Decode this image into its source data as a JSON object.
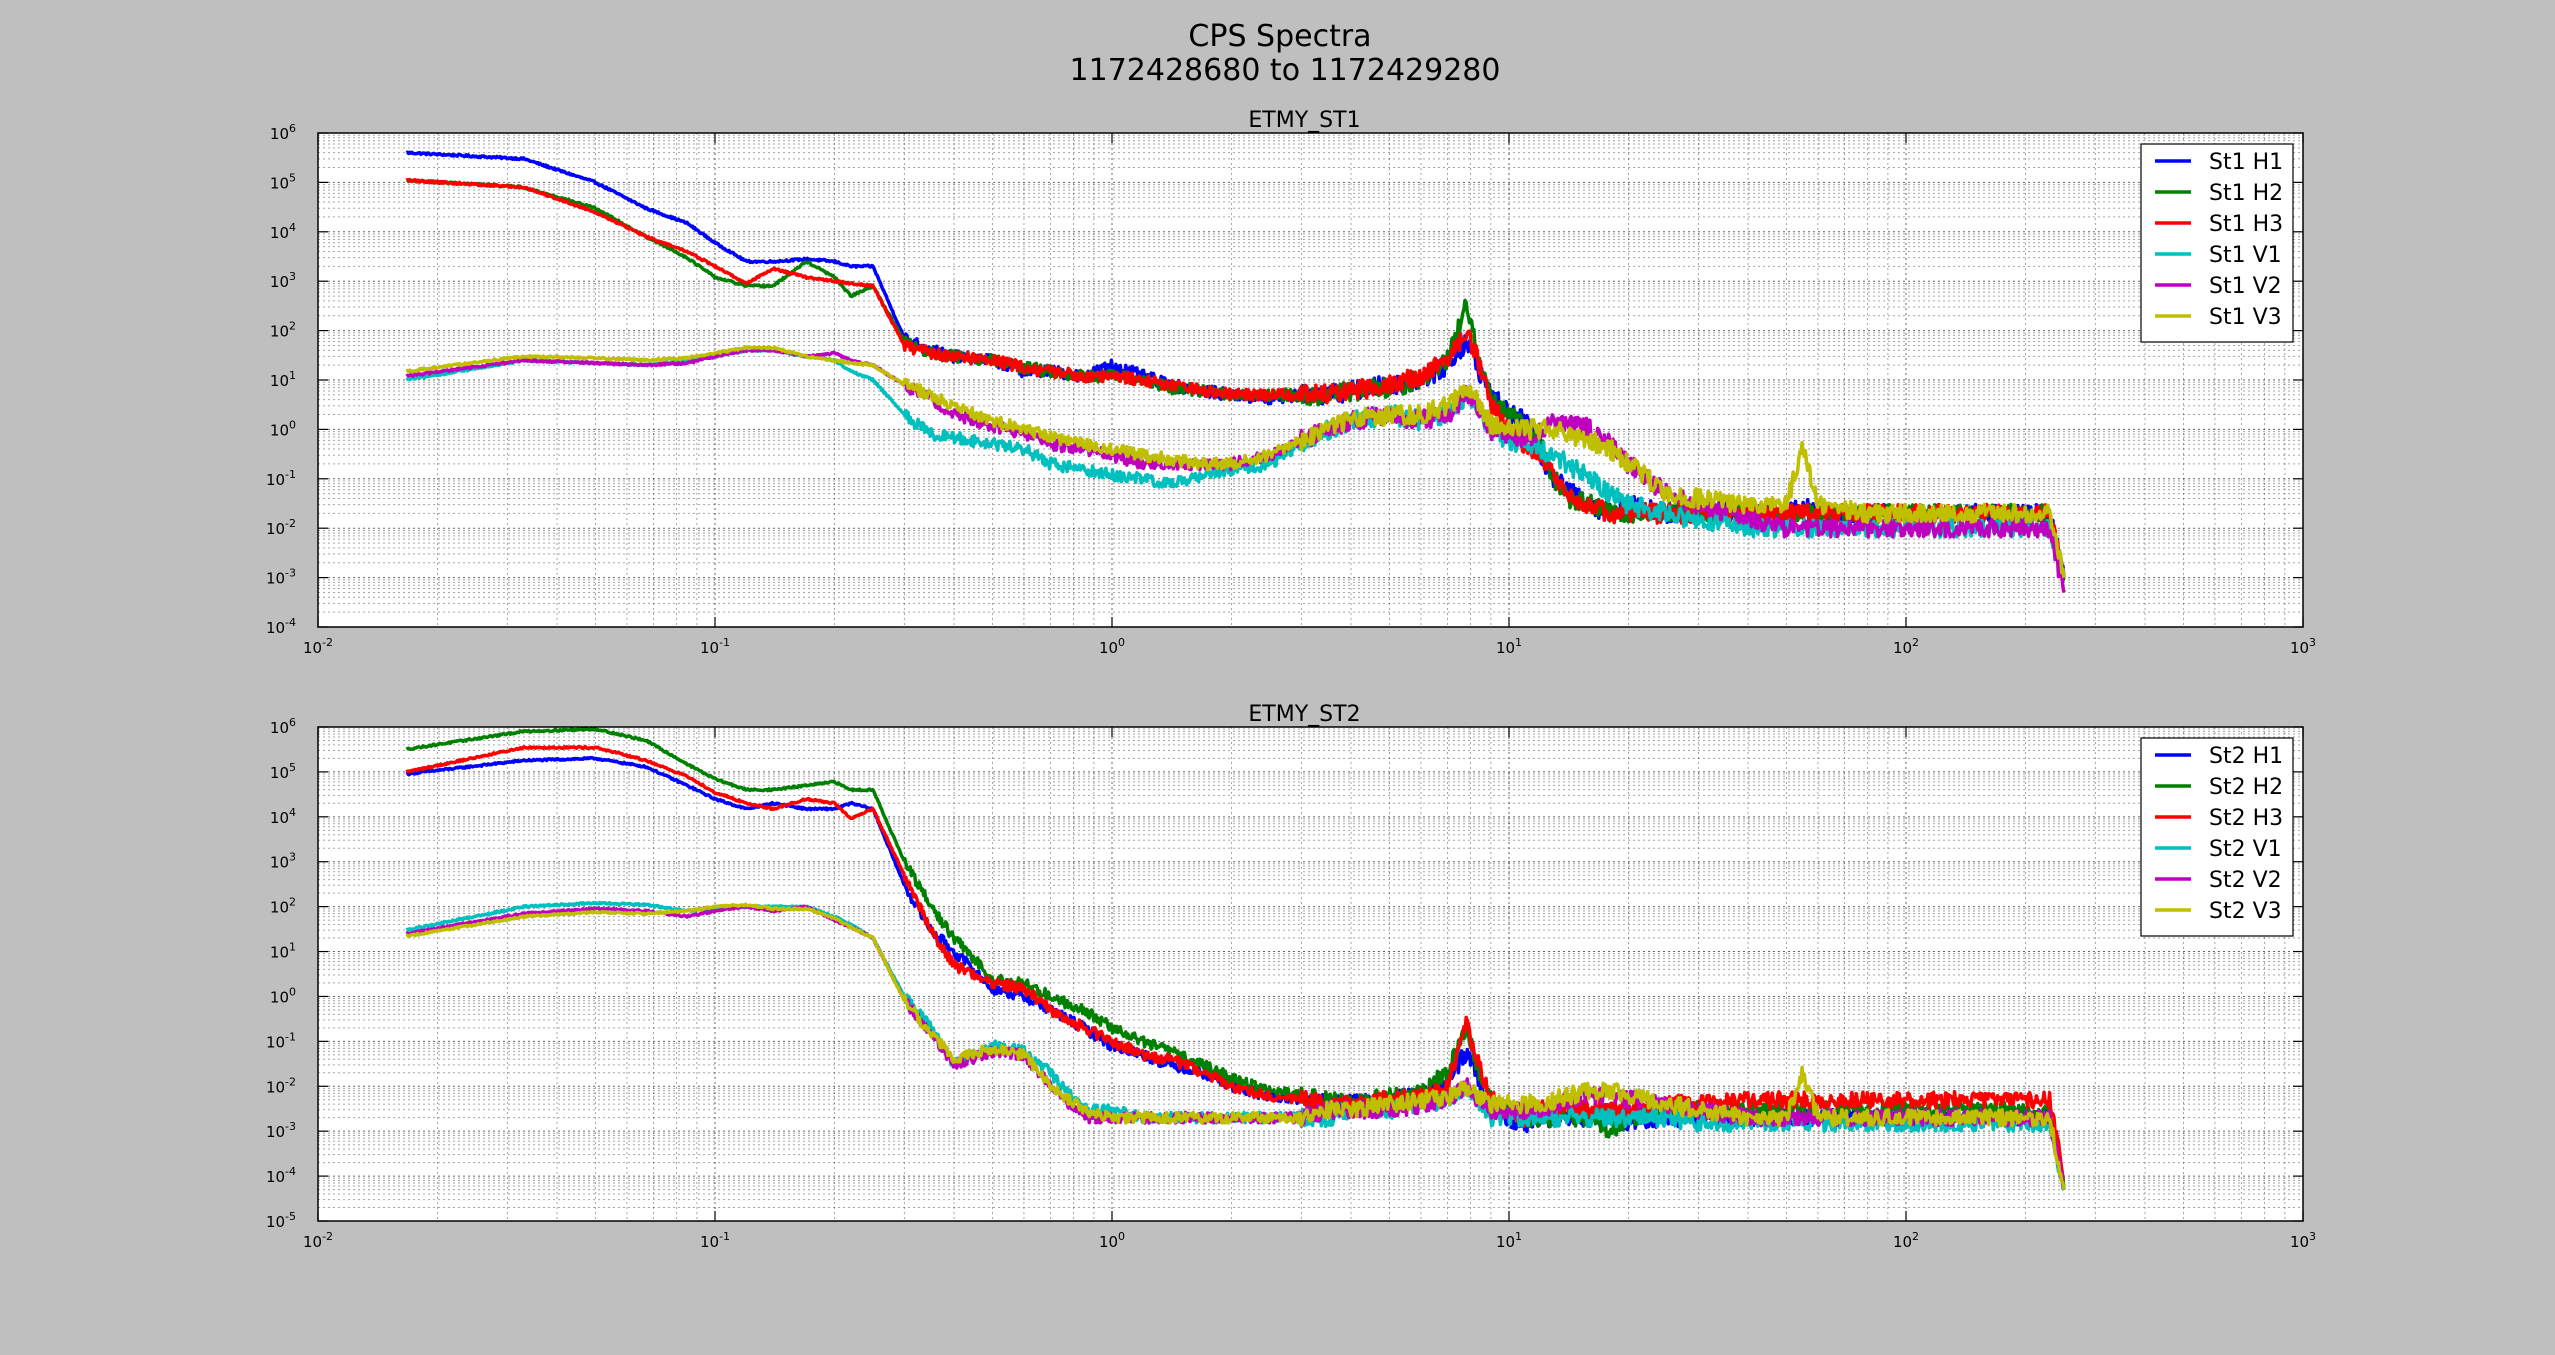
{
  "figure": {
    "title_line1": "CPS Spectra",
    "title_line2": "1172428680 to 1172429280",
    "background": "#bfbfbf"
  },
  "chart_data": [
    {
      "type": "line",
      "title": "ETMY_ST1",
      "xscale": "log",
      "yscale": "log",
      "xlim": [
        0.01,
        1000
      ],
      "ylim": [
        0.0001,
        1000000
      ],
      "grid": true,
      "legend_position": "top-right",
      "x_tick_labels": [
        "10-2",
        "10-1",
        "100",
        "101",
        "102",
        "103"
      ],
      "y_tick_labels": [
        "10-4",
        "10-3",
        "10-2",
        "10-1",
        "100",
        "101",
        "102",
        "103",
        "104",
        "105",
        "106"
      ],
      "x": [
        0.0167,
        0.033,
        0.05,
        0.067,
        0.085,
        0.1,
        0.12,
        0.14,
        0.17,
        0.2,
        0.22,
        0.25,
        0.3,
        0.35,
        0.4,
        0.5,
        0.6,
        0.7,
        0.85,
        1,
        1.2,
        1.4,
        1.7,
        2,
        2.5,
        3,
        3.5,
        4,
        5,
        6,
        7,
        7.8,
        8.3,
        9,
        10,
        11,
        12,
        13,
        14,
        16,
        18,
        20,
        25,
        30,
        40,
        50,
        55,
        60,
        80,
        100,
        130,
        160,
        200,
        230,
        250
      ],
      "series": [
        {
          "name": "St1 H1",
          "color": "#0000ff",
          "values": [
            400000,
            300000,
            100000,
            30000,
            15000,
            6000,
            2500,
            2500,
            2800,
            2500,
            2000,
            2000,
            70,
            40,
            30,
            25,
            15,
            15,
            12,
            20,
            12,
            8,
            6,
            5,
            4,
            5,
            5,
            6,
            8,
            10,
            20,
            60,
            20,
            5,
            2,
            1.5,
            0.3,
            0.1,
            0.06,
            0.03,
            0.02,
            0.03,
            0.02,
            0.03,
            0.02,
            0.02,
            0.03,
            0.02,
            0.02,
            0.02,
            0.02,
            0.02,
            0.02,
            0.02,
            0.001
          ]
        },
        {
          "name": "St1 H2",
          "color": "#008000",
          "values": [
            110000,
            80000,
            30000,
            8000,
            3000,
            1200,
            800,
            800,
            2500,
            1200,
            500,
            800,
            60,
            35,
            30,
            25,
            18,
            15,
            12,
            12,
            10,
            7,
            6,
            5,
            5,
            5,
            5,
            6,
            7,
            10,
            25,
            300,
            40,
            4,
            2,
            1.2,
            0.5,
            0.1,
            0.04,
            0.03,
            0.02,
            0.02,
            0.02,
            0.02,
            0.02,
            0.02,
            0.02,
            0.02,
            0.02,
            0.02,
            0.02,
            0.02,
            0.02,
            0.02,
            0.001
          ]
        },
        {
          "name": "St1 H3",
          "color": "#ff0000",
          "values": [
            110000,
            80000,
            25000,
            8000,
            4000,
            2000,
            900,
            1800,
            1200,
            1000,
            900,
            800,
            50,
            35,
            30,
            25,
            18,
            15,
            12,
            12,
            10,
            8,
            6,
            5,
            5,
            5,
            5,
            6,
            8,
            12,
            25,
            100,
            30,
            3,
            1,
            0.5,
            0.3,
            0.1,
            0.05,
            0.03,
            0.02,
            0.02,
            0.02,
            0.02,
            0.02,
            0.02,
            0.02,
            0.02,
            0.02,
            0.02,
            0.02,
            0.02,
            0.02,
            0.02,
            0.001
          ]
        },
        {
          "name": "St1 V1",
          "color": "#00bfbf",
          "values": [
            10,
            25,
            22,
            20,
            25,
            30,
            40,
            40,
            30,
            25,
            15,
            10,
            2,
            0.8,
            0.7,
            0.5,
            0.4,
            0.2,
            0.15,
            0.12,
            0.1,
            0.08,
            0.12,
            0.15,
            0.2,
            0.5,
            1,
            1.5,
            2,
            1.5,
            2,
            5,
            3,
            1,
            0.6,
            0.5,
            0.4,
            0.3,
            0.2,
            0.1,
            0.05,
            0.03,
            0.02,
            0.015,
            0.01,
            0.01,
            0.01,
            0.01,
            0.01,
            0.01,
            0.01,
            0.01,
            0.01,
            0.01,
            0.001
          ]
        },
        {
          "name": "St1 V2",
          "color": "#bf00bf",
          "values": [
            12,
            25,
            22,
            20,
            22,
            30,
            40,
            40,
            30,
            35,
            25,
            20,
            8,
            4,
            2,
            1.2,
            0.8,
            0.5,
            0.4,
            0.3,
            0.2,
            0.2,
            0.2,
            0.2,
            0.3,
            0.6,
            1,
            1.5,
            2,
            1.5,
            2,
            5,
            3,
            1,
            0.8,
            0.6,
            1,
            1.5,
            1.5,
            1,
            0.5,
            0.2,
            0.05,
            0.03,
            0.015,
            0.01,
            0.01,
            0.01,
            0.01,
            0.01,
            0.01,
            0.01,
            0.01,
            0.01,
            0.0005
          ]
        },
        {
          "name": "St1 V3",
          "color": "#bfbf00",
          "values": [
            15,
            30,
            28,
            25,
            28,
            35,
            45,
            45,
            30,
            25,
            22,
            20,
            8,
            5,
            3,
            1.5,
            1,
            0.7,
            0.5,
            0.4,
            0.3,
            0.25,
            0.2,
            0.2,
            0.3,
            0.6,
            1,
            1.5,
            2,
            2,
            3,
            6,
            4,
            1.2,
            1,
            1,
            1,
            1,
            0.8,
            0.6,
            0.4,
            0.2,
            0.05,
            0.04,
            0.03,
            0.03,
            0.5,
            0.03,
            0.02,
            0.02,
            0.02,
            0.02,
            0.02,
            0.02,
            0.001
          ]
        }
      ]
    },
    {
      "type": "line",
      "title": "ETMY_ST2",
      "xscale": "log",
      "yscale": "log",
      "xlim": [
        0.01,
        1000
      ],
      "ylim": [
        1e-05,
        1000000
      ],
      "grid": true,
      "legend_position": "top-right",
      "x_tick_labels": [
        "10-2",
        "10-1",
        "100",
        "101",
        "102",
        "103"
      ],
      "y_tick_labels": [
        "10-5",
        "10-4",
        "10-3",
        "10-2",
        "10-1",
        "100",
        "101",
        "102",
        "103",
        "104",
        "105",
        "106"
      ],
      "x": [
        0.0167,
        0.033,
        0.05,
        0.067,
        0.085,
        0.1,
        0.12,
        0.14,
        0.17,
        0.2,
        0.22,
        0.25,
        0.3,
        0.35,
        0.4,
        0.5,
        0.6,
        0.7,
        0.85,
        1,
        1.2,
        1.4,
        1.7,
        2,
        2.5,
        3,
        3.5,
        4,
        5,
        6,
        7,
        7.8,
        8.3,
        9,
        10,
        11,
        12,
        13,
        14,
        16,
        18,
        20,
        25,
        30,
        40,
        50,
        55,
        60,
        80,
        100,
        130,
        160,
        200,
        230,
        250
      ],
      "series": [
        {
          "name": "St2 H1",
          "color": "#0000ff",
          "values": [
            90000,
            180000,
            200000,
            130000,
            50000,
            25000,
            15000,
            20000,
            15000,
            15000,
            20000,
            15000,
            300,
            30,
            10,
            1.5,
            1,
            0.5,
            0.2,
            0.08,
            0.05,
            0.03,
            0.02,
            0.01,
            0.006,
            0.005,
            0.004,
            0.004,
            0.005,
            0.006,
            0.01,
            0.06,
            0.02,
            0.003,
            0.002,
            0.0015,
            0.002,
            0.002,
            0.002,
            0.002,
            0.002,
            0.0015,
            0.002,
            0.002,
            0.002,
            0.002,
            0.002,
            0.002,
            0.002,
            0.002,
            0.002,
            0.002,
            0.002,
            0.002,
            5e-05
          ]
        },
        {
          "name": "St2 H2",
          "color": "#008000",
          "values": [
            320000,
            800000,
            900000,
            500000,
            150000,
            70000,
            40000,
            40000,
            50000,
            60000,
            40000,
            40000,
            1000,
            100,
            20,
            2.5,
            2,
            1,
            0.5,
            0.2,
            0.1,
            0.06,
            0.03,
            0.015,
            0.008,
            0.006,
            0.005,
            0.004,
            0.006,
            0.008,
            0.02,
            0.2,
            0.03,
            0.005,
            0.003,
            0.002,
            0.002,
            0.002,
            0.002,
            0.002,
            0.001,
            0.002,
            0.003,
            0.003,
            0.003,
            0.003,
            0.003,
            0.003,
            0.003,
            0.003,
            0.003,
            0.003,
            0.003,
            0.003,
            5e-05
          ]
        },
        {
          "name": "St2 H3",
          "color": "#ff0000",
          "values": [
            100000,
            350000,
            350000,
            180000,
            80000,
            35000,
            20000,
            15000,
            25000,
            20000,
            9000,
            15000,
            500,
            30,
            5,
            2,
            1.5,
            0.5,
            0.2,
            0.1,
            0.05,
            0.04,
            0.02,
            0.01,
            0.006,
            0.005,
            0.004,
            0.004,
            0.005,
            0.006,
            0.01,
            0.25,
            0.04,
            0.005,
            0.003,
            0.002,
            0.003,
            0.003,
            0.004,
            0.003,
            0.003,
            0.003,
            0.004,
            0.004,
            0.005,
            0.005,
            0.005,
            0.005,
            0.005,
            0.005,
            0.005,
            0.005,
            0.005,
            0.005,
            0.0001
          ]
        },
        {
          "name": "St2 V1",
          "color": "#00bfbf",
          "values": [
            30,
            100,
            120,
            110,
            80,
            90,
            100,
            100,
            100,
            60,
            40,
            20,
            1,
            0.2,
            0.03,
            0.08,
            0.06,
            0.02,
            0.003,
            0.003,
            0.002,
            0.002,
            0.002,
            0.002,
            0.002,
            0.002,
            0.002,
            0.003,
            0.003,
            0.004,
            0.005,
            0.01,
            0.005,
            0.002,
            0.002,
            0.002,
            0.002,
            0.002,
            0.002,
            0.002,
            0.002,
            0.002,
            0.002,
            0.0015,
            0.0015,
            0.0015,
            0.0015,
            0.0015,
            0.0015,
            0.0015,
            0.0015,
            0.0015,
            0.0015,
            0.0015,
            5e-05
          ]
        },
        {
          "name": "St2 V2",
          "color": "#bf00bf",
          "values": [
            25,
            70,
            90,
            80,
            60,
            80,
            100,
            80,
            100,
            50,
            35,
            20,
            0.8,
            0.15,
            0.03,
            0.06,
            0.05,
            0.01,
            0.002,
            0.002,
            0.002,
            0.002,
            0.002,
            0.002,
            0.002,
            0.002,
            0.003,
            0.003,
            0.003,
            0.004,
            0.005,
            0.01,
            0.005,
            0.003,
            0.003,
            0.003,
            0.003,
            0.004,
            0.005,
            0.006,
            0.006,
            0.005,
            0.004,
            0.003,
            0.002,
            0.002,
            0.002,
            0.002,
            0.002,
            0.002,
            0.002,
            0.002,
            0.002,
            0.002,
            5e-05
          ]
        },
        {
          "name": "St2 V3",
          "color": "#bfbf00",
          "values": [
            22,
            60,
            75,
            70,
            80,
            100,
            110,
            90,
            90,
            55,
            35,
            20,
            0.8,
            0.15,
            0.04,
            0.07,
            0.05,
            0.01,
            0.003,
            0.002,
            0.002,
            0.002,
            0.002,
            0.002,
            0.002,
            0.002,
            0.003,
            0.003,
            0.004,
            0.005,
            0.006,
            0.01,
            0.006,
            0.004,
            0.004,
            0.004,
            0.004,
            0.005,
            0.006,
            0.008,
            0.008,
            0.006,
            0.004,
            0.003,
            0.002,
            0.002,
            0.02,
            0.002,
            0.002,
            0.002,
            0.002,
            0.002,
            0.002,
            0.002,
            5e-05
          ]
        }
      ]
    }
  ]
}
